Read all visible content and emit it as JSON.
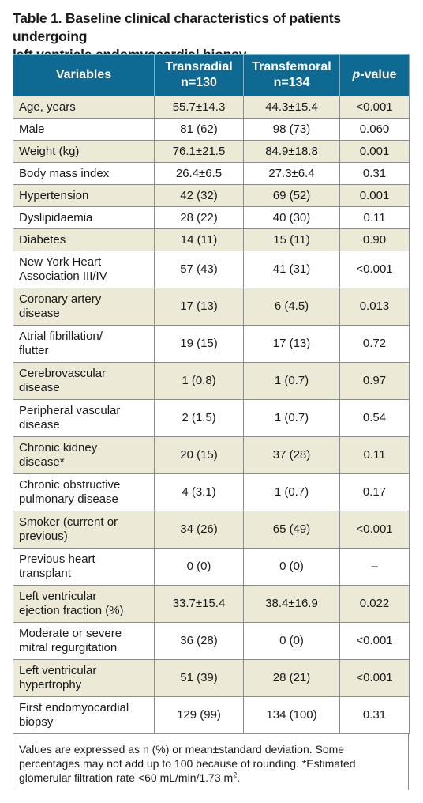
{
  "caption": {
    "line1": "Table 1. Baseline clinical characteristics of patients undergoing",
    "line2": "left ventricle endomyocardial biopsy."
  },
  "table": {
    "headers": {
      "variables": "Variables",
      "transradial_line1": "Transradial",
      "transradial_line2": "n=130",
      "transfemoral_line1": "Transfemoral",
      "transfemoral_line2": "n=134",
      "pvalue_italic": "p",
      "pvalue_rest": "-value"
    },
    "rows": [
      {
        "label": [
          "Age, years"
        ],
        "tr": "55.7±14.3",
        "tf": "44.3±15.4",
        "p": "<0.001"
      },
      {
        "label": [
          "Male"
        ],
        "tr": "81 (62)",
        "tf": "98 (73)",
        "p": "0.060"
      },
      {
        "label": [
          "Weight (kg)"
        ],
        "tr": "76.1±21.5",
        "tf": "84.9±18.8",
        "p": "0.001"
      },
      {
        "label": [
          "Body mass index"
        ],
        "tr": "26.4±6.5",
        "tf": "27.3±6.4",
        "p": "0.31"
      },
      {
        "label": [
          "Hypertension"
        ],
        "tr": "42 (32)",
        "tf": "69 (52)",
        "p": "0.001"
      },
      {
        "label": [
          "Dyslipidaemia"
        ],
        "tr": "28 (22)",
        "tf": "40 (30)",
        "p": "0.11"
      },
      {
        "label": [
          "Diabetes"
        ],
        "tr": "14 (11)",
        "tf": "15 (11)",
        "p": "0.90"
      },
      {
        "label": [
          "New York Heart",
          "Association III/IV"
        ],
        "tr": "57 (43)",
        "tf": "41 (31)",
        "p": "<0.001"
      },
      {
        "label": [
          "Coronary artery",
          "disease"
        ],
        "tr": "17 (13)",
        "tf": "6 (4.5)",
        "p": "0.013"
      },
      {
        "label": [
          "Atrial fibrillation/",
          "flutter"
        ],
        "tr": "19 (15)",
        "tf": "17 (13)",
        "p": "0.72"
      },
      {
        "label": [
          "Cerebrovascular",
          "disease"
        ],
        "tr": "1 (0.8)",
        "tf": "1 (0.7)",
        "p": "0.97"
      },
      {
        "label": [
          "Peripheral vascular",
          "disease"
        ],
        "tr": "2 (1.5)",
        "tf": "1 (0.7)",
        "p": "0.54"
      },
      {
        "label": [
          "Chronic kidney",
          "disease*"
        ],
        "tr": "20 (15)",
        "tf": "37 (28)",
        "p": "0.11"
      },
      {
        "label": [
          "Chronic obstructive",
          "pulmonary disease"
        ],
        "tr": "4 (3.1)",
        "tf": "1 (0.7)",
        "p": "0.17"
      },
      {
        "label": [
          "Smoker (current or",
          "previous)"
        ],
        "tr": "34 (26)",
        "tf": "65 (49)",
        "p": "<0.001"
      },
      {
        "label": [
          "Previous heart",
          "transplant"
        ],
        "tr": "0 (0)",
        "tf": "0 (0)",
        "p": "–"
      },
      {
        "label": [
          "Left ventricular",
          "ejection fraction (%)"
        ],
        "tr": "33.7±15.4",
        "tf": "38.4±16.9",
        "p": "0.022"
      },
      {
        "label": [
          "Moderate or severe",
          "mitral regurgitation"
        ],
        "tr": "36 (28)",
        "tf": "0 (0)",
        "p": "<0.001"
      },
      {
        "label": [
          "Left ventricular",
          "hypertrophy"
        ],
        "tr": "51 (39)",
        "tf": "28 (21)",
        "p": "<0.001"
      },
      {
        "label": [
          "First endomyocardial",
          "biopsy"
        ],
        "tr": "129 (99)",
        "tf": "134 (100)",
        "p": "0.31"
      }
    ]
  },
  "footnote": {
    "line1": "Values are expressed as n (%) or mean±standard deviation. Some",
    "line2": "percentages may not add up to 100 because of rounding. *Estimated",
    "line3_prefix": "glomerular filtration rate <60 mL/min/1.73 m",
    "line3_sup": "2",
    "line3_suffix": "."
  }
}
